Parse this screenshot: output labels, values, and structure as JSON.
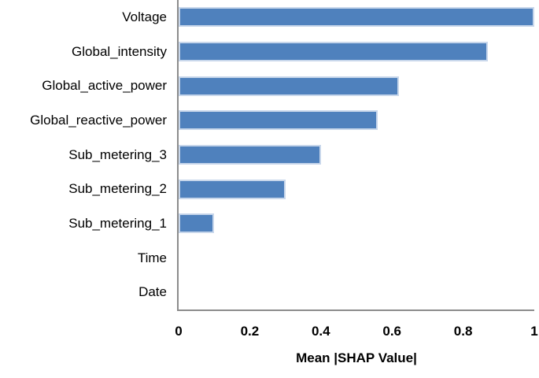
{
  "chart_data": {
    "type": "bar",
    "orientation": "horizontal",
    "title": "",
    "categories": [
      "Voltage",
      "Global_intensity",
      "Global_active_power",
      "Global_reactive_power",
      "Sub_metering_3",
      "Sub_metering_2",
      "Sub_metering_1",
      "Time",
      "Date"
    ],
    "values": [
      1.0,
      0.87,
      0.62,
      0.56,
      0.4,
      0.3,
      0.1,
      0,
      0
    ],
    "xlabel": "Mean |SHAP Value|",
    "ylabel": "",
    "xlim": [
      0,
      1
    ],
    "xticks": [
      0,
      0.2,
      0.4,
      0.6,
      0.8,
      1
    ],
    "xtick_labels": [
      "0",
      "0.2",
      "0.4",
      "0.6",
      "0.8",
      "1"
    ],
    "grid": false,
    "legend_position": "none",
    "colors": {
      "bar_fill": "#4f81bd",
      "bar_border": "#c8d7eb",
      "axis_line": "#8c8c8c",
      "text": "#000000",
      "background": "#ffffff"
    }
  }
}
